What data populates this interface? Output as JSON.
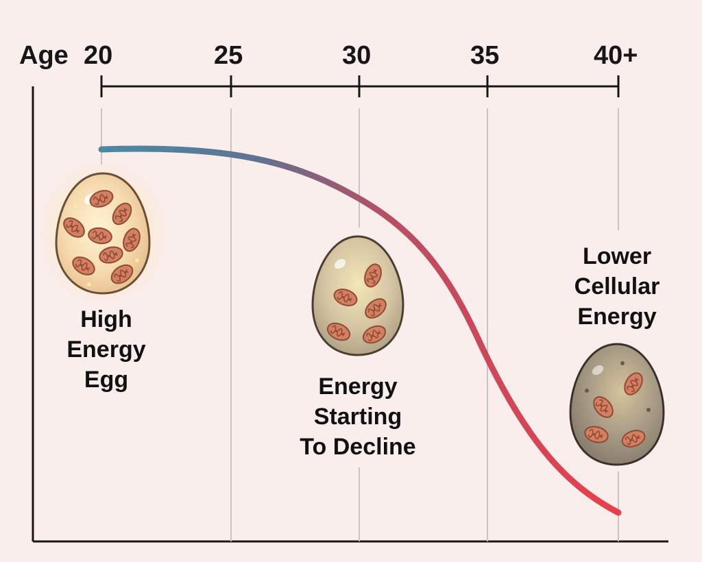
{
  "axis": {
    "prefix": "Age",
    "ticks": [
      "20",
      "25",
      "30",
      "35",
      "40+"
    ]
  },
  "stages": [
    {
      "name": "high-energy",
      "lines": [
        "High",
        "Energy",
        "Egg"
      ]
    },
    {
      "name": "declining",
      "lines": [
        "Energy",
        "Starting",
        "To Decline"
      ]
    },
    {
      "name": "low-energy",
      "lines": [
        "Lower",
        "Cellular",
        "Energy"
      ]
    }
  ],
  "colors": {
    "background": "#faeeec",
    "curve_start": "#4a8aa3",
    "curve_mid": "#b74e64",
    "curve_end": "#e8404a",
    "axis": "#161616",
    "gridline": "#c9c3c2",
    "mitochondria": "#d27f62"
  }
}
